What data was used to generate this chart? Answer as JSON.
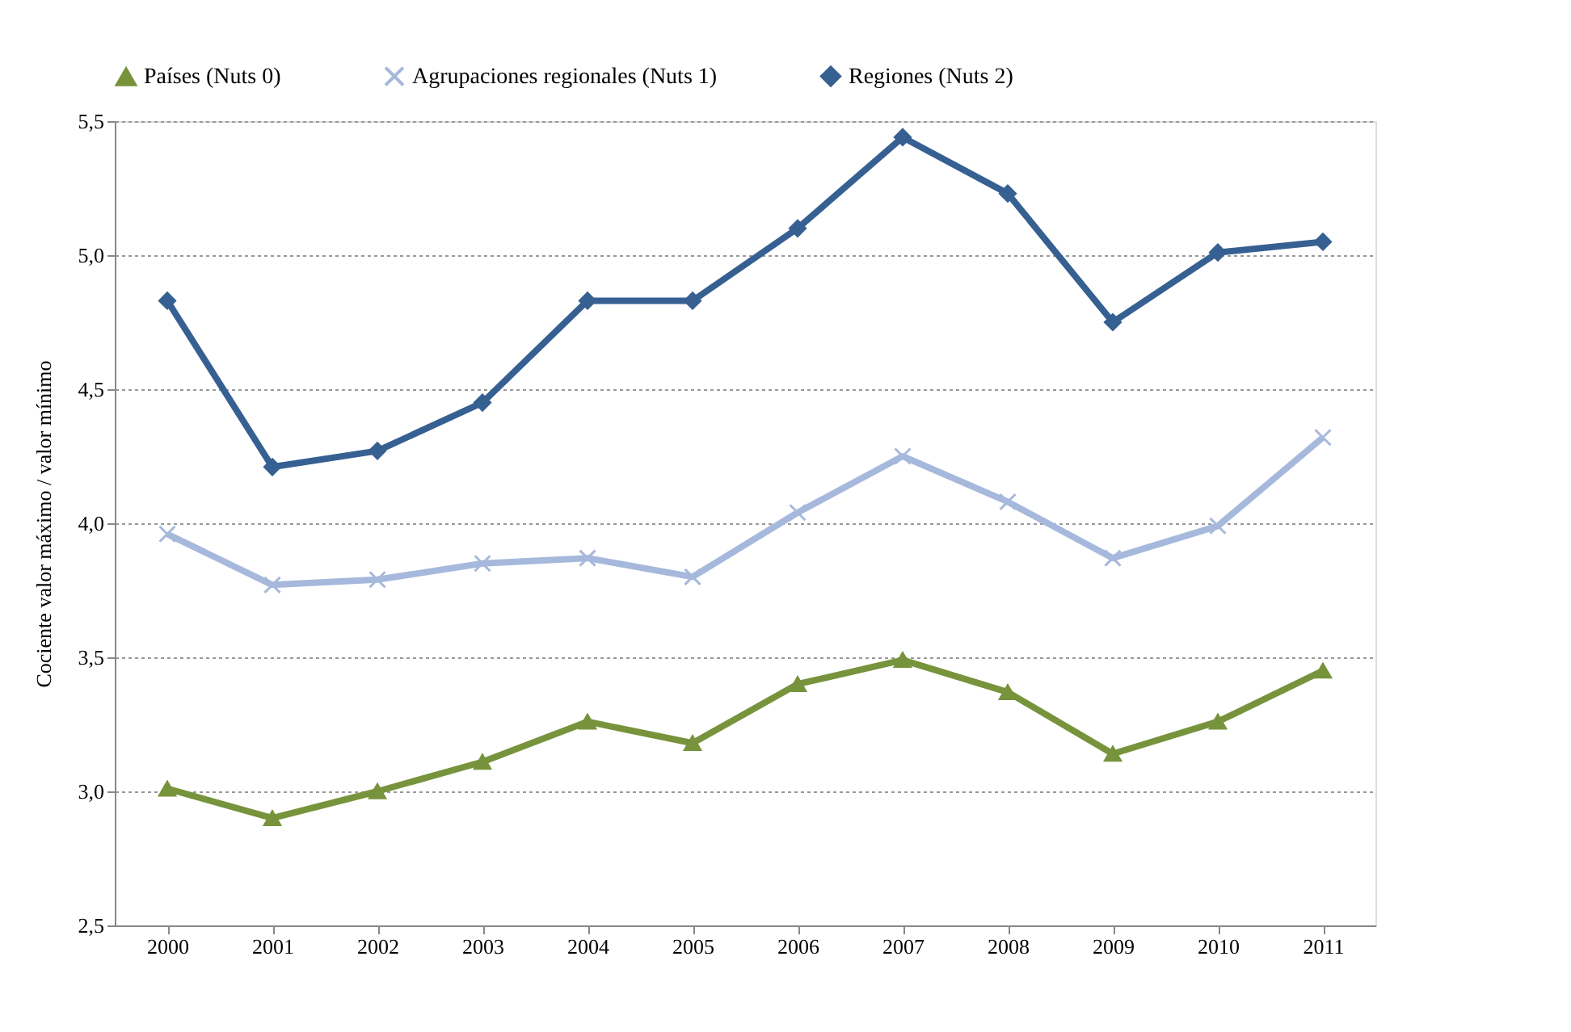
{
  "chart_data": {
    "type": "line",
    "ylabel": "Cociente valor máximo / valor mínimo",
    "categories": [
      "2000",
      "2001",
      "2002",
      "2003",
      "2004",
      "2005",
      "2006",
      "2007",
      "2008",
      "2009",
      "2010",
      "2011"
    ],
    "series": [
      {
        "name": "Países (Nuts 0)",
        "color": "#77933c",
        "marker": "triangle",
        "values": [
          3.01,
          2.9,
          3.0,
          3.11,
          3.26,
          3.18,
          3.4,
          3.49,
          3.37,
          3.14,
          3.26,
          3.45
        ]
      },
      {
        "name": "Agrupaciones regionales (Nuts 1)",
        "color": "#a6b9dc",
        "marker": "cross",
        "values": [
          3.96,
          3.77,
          3.79,
          3.85,
          3.87,
          3.8,
          4.04,
          4.25,
          4.08,
          3.87,
          3.99,
          4.32
        ]
      },
      {
        "name": "Regiones (Nuts 2)",
        "color": "#376092",
        "marker": "diamond",
        "values": [
          4.83,
          4.21,
          4.27,
          4.45,
          4.83,
          4.83,
          5.1,
          5.44,
          5.23,
          4.75,
          5.01,
          5.05
        ]
      }
    ],
    "ylim": [
      2.5,
      5.5
    ],
    "yticks": [
      {
        "value": 2.5,
        "label": "2,5"
      },
      {
        "value": 3.0,
        "label": "3,0"
      },
      {
        "value": 3.5,
        "label": "3,5"
      },
      {
        "value": 4.0,
        "label": "4,0"
      },
      {
        "value": 4.5,
        "label": "4,5"
      },
      {
        "value": 5.0,
        "label": "5,0"
      },
      {
        "value": 5.5,
        "label": "5,5"
      }
    ],
    "grid": "y",
    "legend": "top",
    "line_style": "solid"
  }
}
